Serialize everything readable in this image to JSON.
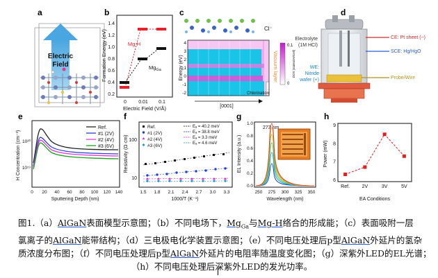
{
  "panels": {
    "a": {
      "letter": "a",
      "field_label": [
        "Electric",
        "Field"
      ]
    },
    "b": {
      "letter": "b",
      "ylabel": "Formation Energy (eV)",
      "xlabel": "Electric Field (V/Å)",
      "yticks": [
        "0.2",
        "0.4",
        "0.6",
        "0.8",
        "1.0",
        "1.2",
        "1.4"
      ],
      "xticks": [
        "0",
        "0.01",
        "0.1"
      ],
      "mgh_label": "Mg-H",
      "mgga_label": "Mg",
      "mgga_sub": "Ga",
      "mgh_color": "#e8202a",
      "mgga_color": "#111111"
    },
    "c": {
      "letter": "c",
      "ion_label": "Cl⁻",
      "ylabel": "Energy (eV)",
      "yticks": [
        "4",
        "3",
        "2",
        "1",
        "0",
        "-1",
        "-2"
      ],
      "vacuum_label": "Vacuum layer",
      "chlorination_label": "Chlorination",
      "cbar_max": "0.1",
      "cbar_min": "0",
      "cbar_label": "DOS (states/eV/cell)",
      "axis_label": "[0001]"
    },
    "d": {
      "letter": "d",
      "electrolyte": [
        "Electrolyte",
        "(1M HCl)"
      ],
      "ce": "CE: Pt sheet (−)",
      "sce": "SCE: Hg/HgO",
      "we": [
        "WE:",
        "Nitride",
        "wafer (+)"
      ],
      "probe": "Probe/Wire"
    },
    "e": {
      "letter": "e",
      "ylabel": "H Concentration (cm⁻³)",
      "xlabel": "Sputtering Depth (nm)",
      "xticks": [
        "0",
        "20",
        "40",
        "60",
        "80",
        "100",
        "120",
        "140"
      ],
      "ytick_hi": "10²⁰",
      "ytick_lo": "10¹⁹",
      "legend": [
        "Ref.",
        "#1 (2V)",
        "#2 (4V)",
        "#3 (6V)"
      ],
      "colors": [
        "#222222",
        "#2b3fd6",
        "#e23ad8",
        "#1aa11a"
      ]
    },
    "f": {
      "letter": "f",
      "ylabel": "Resistivity (Ω·cm)",
      "xlabel": "1000/T (K⁻¹)",
      "xticks": [
        "1.5",
        "1.8",
        "2.1",
        "2.4",
        "2.7",
        "3.0",
        "3.3"
      ],
      "yticks": [
        "10",
        "100"
      ],
      "legend": [
        "Ref.",
        "#1 (2V)",
        "#2 (4V)",
        "#3 (6V)"
      ],
      "ea": [
        "Eₐ = 40.2 meV",
        "Eₐ = 38.8 meV",
        "Eₐ = 3.3 meV",
        "Eₐ = 4.6 meV"
      ],
      "colors": [
        "#111111",
        "#1d3fd8",
        "#e02ad8",
        "#1a8fd8"
      ]
    },
    "g": {
      "letter": "g",
      "peak_label": "273 nm",
      "ylabel": "EL Intensity (a.u.)",
      "xlabel": "Wavelength (nm)",
      "xticks": [
        "250",
        "275",
        "300",
        "325",
        "350"
      ],
      "yticks": [
        "0.0",
        "0.2",
        "0.4",
        "0.6",
        "0.8",
        "1.0"
      ]
    },
    "h": {
      "letter": "h",
      "ylabel": "Power (mW)",
      "xlabel": "EA Conditions",
      "yticks": [
        "6",
        "7",
        "8",
        "9"
      ],
      "chart_data": {
        "type": "line",
        "title": "",
        "xlabel": "EA Conditions",
        "ylabel": "Power (mW)",
        "categories": [
          "Ref.",
          "2V",
          "3V",
          "5V"
        ],
        "values": [
          6.3,
          6.7,
          8.5,
          7.3
        ],
        "ylim": [
          5.9,
          9.1
        ],
        "color": "#e0201f"
      }
    }
  },
  "caption": {
    "l1a": "图1.（a）",
    "l1b": "AlGaN",
    "l1c": "表面模型示意图；（b）不同电场下，",
    "l1d": "Mg",
    "l1d_sub": "Ga",
    "l1e": "与",
    "l1f": "Mg-H",
    "l1g": "络合的形成能；（c）表面吸附一层",
    "l2a": "氯离子的",
    "l2b": "AlGaN",
    "l2c": "能带结构；（d）三电极电化学装置示意图；（e）不同电压处理后",
    "l2d": "p",
    "l2e": "型",
    "l2f": "AlGaN",
    "l2g": "外延片的氢杂",
    "l3a": "质浓度分布图；（f）不同电压处理后",
    "l3b": "p",
    "l3c": "型",
    "l3d": "AlGaN",
    "l3e": "外延片的电阻率随温度变化图；（g）深紫外",
    "l3f": "LED",
    "l3g": "的",
    "l3h": "EL",
    "l3i": "光谱；",
    "l4a": "（h）不同电压处理后深紫外",
    "l4b": "LED",
    "l4c": "的发光功率。"
  }
}
